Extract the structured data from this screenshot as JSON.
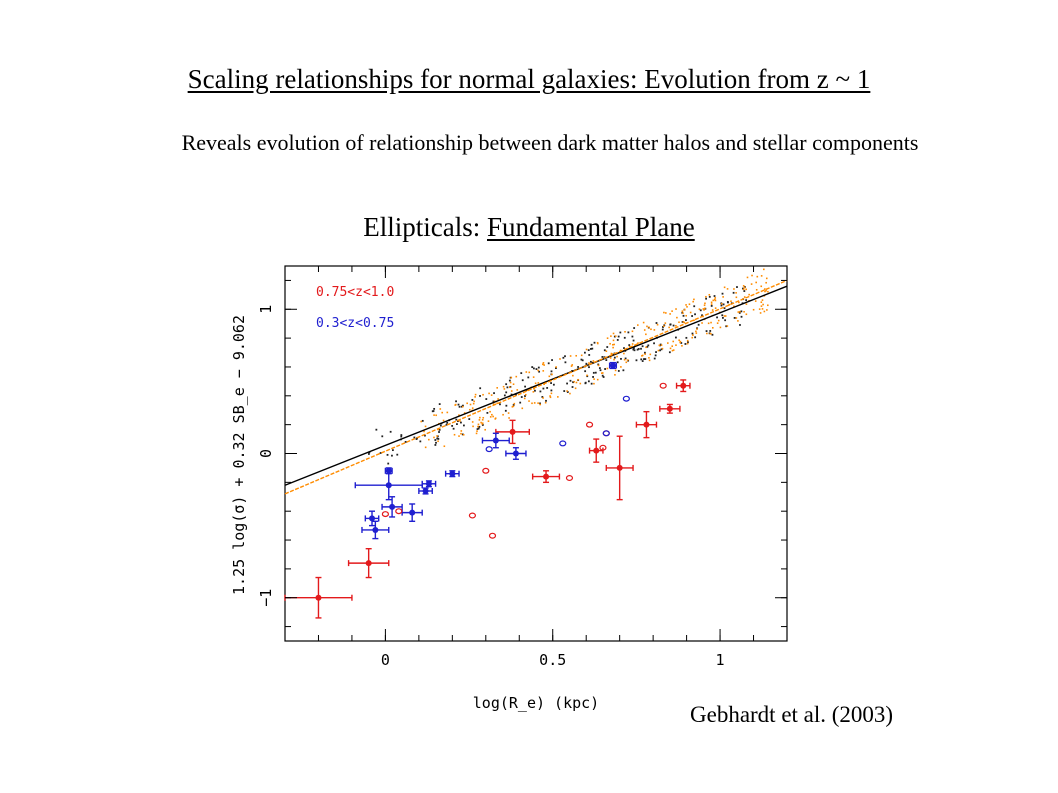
{
  "slide": {
    "title": "Scaling relationships for normal galaxies: Evolution from z ~ 1",
    "subtitle": "Reveals evolution of relationship between dark matter halos and stellar components",
    "section_prefix": "Ellipticals: ",
    "section_link": "Fundamental Plane",
    "citation": "Gebhardt et al. (2003)"
  },
  "colors": {
    "red": "#e31a1c",
    "blue": "#1f1fd0",
    "fit_black": "#000000",
    "fit_orange": "#ff8c00",
    "local_points": "#222222"
  },
  "chart_data": {
    "type": "scatter",
    "xlabel": "log(R_e) (kpc)",
    "ylabel": "1.25 log(σ) + 0.32 SB_e − 9.062",
    "xlim": [
      -0.3,
      1.2
    ],
    "ylim": [
      -1.3,
      1.3
    ],
    "xticks": [
      "0",
      "0.5",
      "1"
    ],
    "yticks": [
      "−1",
      "0",
      "1"
    ],
    "legend": {
      "placement": "top-left"
    },
    "series": [
      {
        "name": "0.75<z<1.0",
        "color": "#e31a1c",
        "points": [
          {
            "x": -0.2,
            "y": -1.0,
            "xerr": 0.1,
            "yerr": 0.14
          },
          {
            "x": -0.05,
            "y": -0.76,
            "xerr": 0.06,
            "yerr": 0.1
          },
          {
            "x": 0.38,
            "y": 0.15,
            "xerr": 0.05,
            "yerr": 0.08
          },
          {
            "x": 0.48,
            "y": -0.16,
            "xerr": 0.04,
            "yerr": 0.04
          },
          {
            "x": 0.63,
            "y": 0.02,
            "xerr": 0.02,
            "yerr": 0.08
          },
          {
            "x": 0.7,
            "y": -0.1,
            "xerr": 0.04,
            "yerr": 0.22
          },
          {
            "x": 0.78,
            "y": 0.2,
            "xerr": 0.03,
            "yerr": 0.09
          },
          {
            "x": 0.85,
            "y": 0.31,
            "xerr": 0.03,
            "yerr": 0.03
          },
          {
            "x": 0.89,
            "y": 0.47,
            "xerr": 0.02,
            "yerr": 0.04
          }
        ],
        "open_points": [
          {
            "x": -0.0,
            "y": -0.42
          },
          {
            "x": 0.04,
            "y": -0.4
          },
          {
            "x": 0.26,
            "y": -0.43
          },
          {
            "x": 0.32,
            "y": -0.57
          },
          {
            "x": 0.3,
            "y": -0.12
          },
          {
            "x": 0.55,
            "y": -0.17
          },
          {
            "x": 0.61,
            "y": 0.2
          },
          {
            "x": 0.65,
            "y": 0.04
          },
          {
            "x": 0.66,
            "y": 0.14
          },
          {
            "x": 0.83,
            "y": 0.47
          }
        ]
      },
      {
        "name": "0.3<z<0.75",
        "color": "#1f1fd0",
        "points": [
          {
            "x": -0.04,
            "y": -0.45,
            "xerr": 0.02,
            "yerr": 0.05
          },
          {
            "x": -0.03,
            "y": -0.53,
            "xerr": 0.04,
            "yerr": 0.06
          },
          {
            "x": 0.01,
            "y": -0.12,
            "xerr": 0.01,
            "yerr": 0.02
          },
          {
            "x": 0.01,
            "y": -0.22,
            "xerr": 0.1,
            "yerr": 0.1
          },
          {
            "x": 0.02,
            "y": -0.37,
            "xerr": 0.03,
            "yerr": 0.07
          },
          {
            "x": 0.08,
            "y": -0.41,
            "xerr": 0.03,
            "yerr": 0.06
          },
          {
            "x": 0.12,
            "y": -0.26,
            "xerr": 0.02,
            "yerr": 0.02
          },
          {
            "x": 0.13,
            "y": -0.21,
            "xerr": 0.02,
            "yerr": 0.02
          },
          {
            "x": 0.2,
            "y": -0.14,
            "xerr": 0.02,
            "yerr": 0.02
          },
          {
            "x": 0.33,
            "y": 0.09,
            "xerr": 0.04,
            "yerr": 0.05
          },
          {
            "x": 0.39,
            "y": 0.0,
            "xerr": 0.03,
            "yerr": 0.04
          },
          {
            "x": 0.68,
            "y": 0.61,
            "xerr": 0.01,
            "yerr": 0.02
          }
        ],
        "open_points": [
          {
            "x": 0.31,
            "y": 0.03
          },
          {
            "x": 0.53,
            "y": 0.07
          },
          {
            "x": 0.66,
            "y": 0.14
          },
          {
            "x": 0.72,
            "y": 0.38
          }
        ]
      }
    ],
    "fit_lines": [
      {
        "color": "#000000",
        "x": [
          -0.3,
          1.2
        ],
        "y": [
          -0.22,
          1.16
        ]
      },
      {
        "color": "#ff8c00",
        "x": [
          -0.3,
          1.2
        ],
        "y": [
          -0.28,
          1.2
        ]
      }
    ],
    "local_sample_note": "dense cloud of small black and orange dots along the fit lines"
  }
}
